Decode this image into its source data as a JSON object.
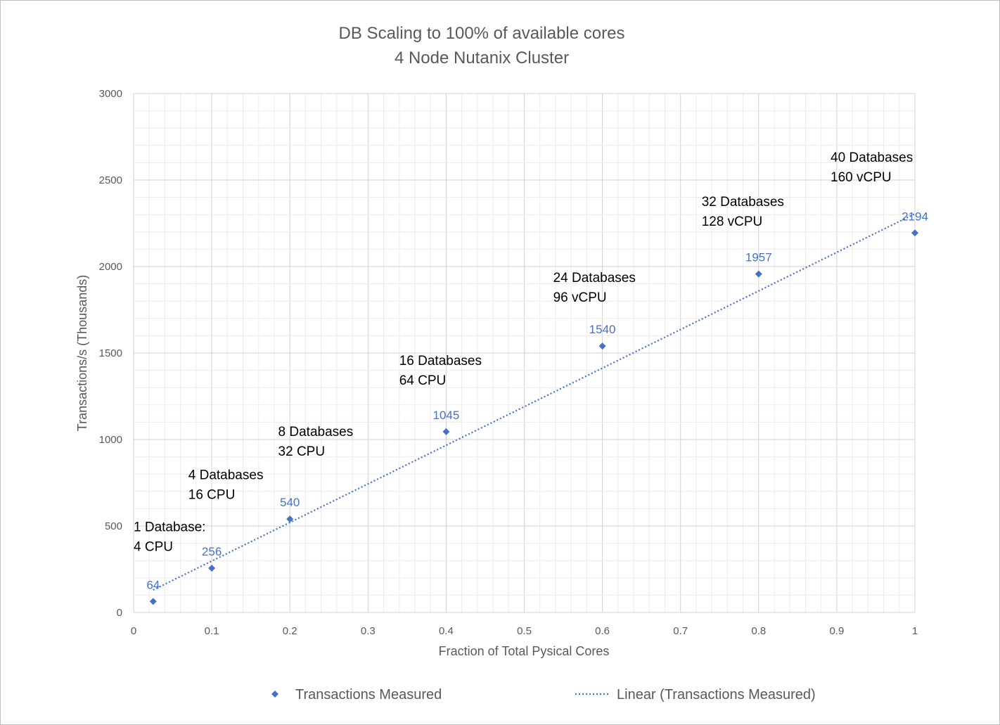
{
  "chart_data": {
    "type": "scatter",
    "title": "DB Scaling to 100% of available cores",
    "subtitle": "4 Node Nutanix Cluster",
    "xlabel": "Fraction of Total Pysical Cores",
    "ylabel": "Transactions/s (Thousands)",
    "xlim": [
      0,
      1
    ],
    "ylim": [
      0,
      3000
    ],
    "x_ticks": [
      "0",
      "0.1",
      "0.2",
      "0.3",
      "0.4",
      "0.5",
      "0.6",
      "0.7",
      "0.8",
      "0.9",
      "1"
    ],
    "y_ticks": [
      "0",
      "500",
      "1000",
      "1500",
      "2000",
      "2500",
      "3000"
    ],
    "grid": true,
    "legend_position": "bottom",
    "series": [
      {
        "name": "Transactions Measured",
        "marker": "diamond",
        "color": "#4472c4",
        "x": [
          0.025,
          0.1,
          0.2,
          0.4,
          0.6,
          0.8,
          1.0
        ],
        "y": [
          64,
          256,
          540,
          1045,
          1540,
          1957,
          2194
        ],
        "labels": [
          "64",
          "256",
          "540",
          "1045",
          "1540",
          "1957",
          "2194"
        ]
      }
    ],
    "trendline": {
      "name": "Linear (Transactions Measured)",
      "type": "linear",
      "style": "dotted",
      "color": "#4472c4",
      "x_range": [
        0.025,
        1.0
      ],
      "y_range": [
        130,
        2305
      ]
    },
    "annotations": [
      {
        "lines": [
          "1 Database:",
          "4 CPU"
        ],
        "x": 0.0,
        "y": 470
      },
      {
        "lines": [
          "4 Databases",
          "16 CPU"
        ],
        "x": 0.07,
        "y": 770
      },
      {
        "lines": [
          "8 Databases",
          "32 CPU"
        ],
        "x": 0.185,
        "y": 1020
      },
      {
        "lines": [
          "16 Databases",
          "64 CPU"
        ],
        "x": 0.34,
        "y": 1430
      },
      {
        "lines": [
          "24 Databases",
          "96 vCPU"
        ],
        "x": 0.537,
        "y": 1910
      },
      {
        "lines": [
          "32 Databases",
          "128 vCPU"
        ],
        "x": 0.727,
        "y": 2350
      },
      {
        "lines": [
          "40 Databases",
          "160 vCPU"
        ],
        "x": 0.892,
        "y": 2605
      }
    ]
  }
}
